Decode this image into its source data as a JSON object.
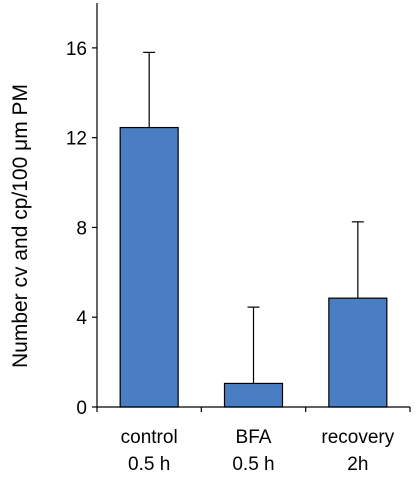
{
  "chart_data": {
    "type": "bar",
    "categories": [
      [
        "control",
        "0.5 h"
      ],
      [
        "BFA",
        "0.5 h"
      ],
      [
        "recovery",
        "2h"
      ]
    ],
    "values": [
      12.45,
      1.05,
      4.85
    ],
    "error_bars_upper": [
      15.8,
      4.45,
      8.25
    ],
    "title": "",
    "xlabel": "",
    "ylabel": "Number cv and cp/100 μm PM",
    "ylim": [
      0,
      18
    ],
    "yticks": [
      0,
      4,
      8,
      12,
      16
    ],
    "grid": false,
    "bar_color": "#4a7ec2",
    "bar_edge_color": "#000000"
  }
}
